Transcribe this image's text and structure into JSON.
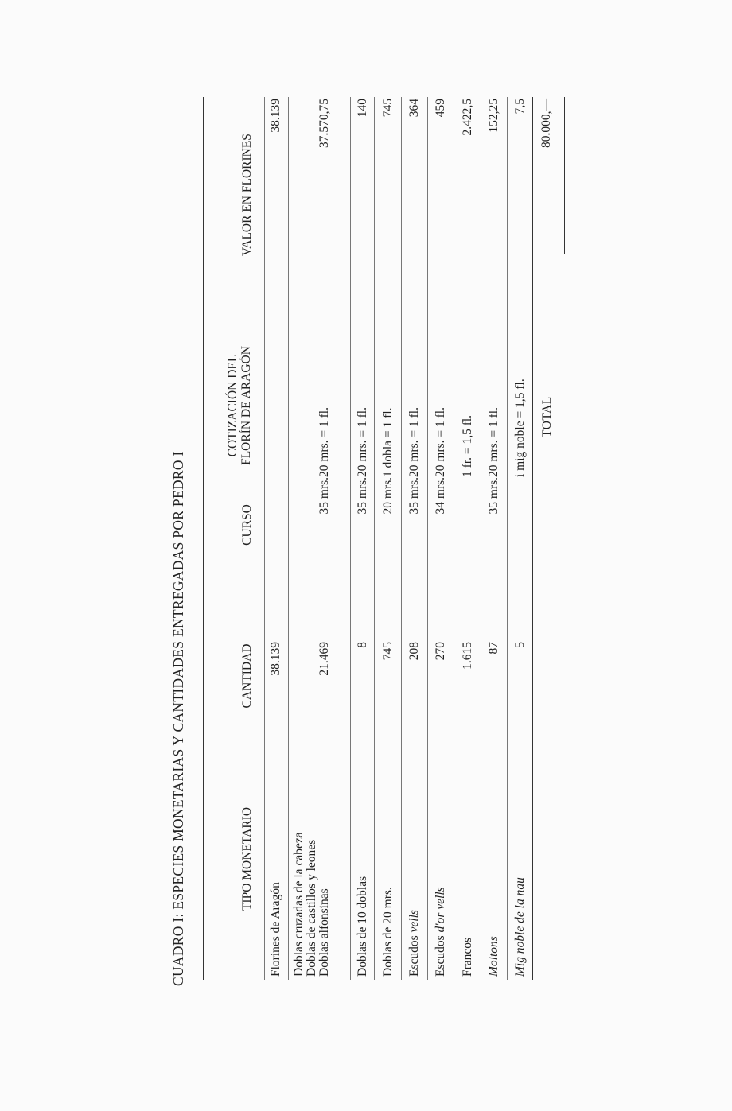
{
  "title": "CUADRO I: ESPECIES MONETARIAS Y CANTIDADES ENTREGADAS POR PEDRO I",
  "headers": {
    "tipo": "TIPO MONETARIO",
    "cantidad": "CANTIDAD",
    "curso": "CURSO",
    "cotizacion_1": "COTIZACIÓN DEL",
    "cotizacion_2": "FLORÍN DE ARAGÓN",
    "valor": "VALOR EN FLORINES"
  },
  "rows": [
    {
      "tipo": "Florines de Aragón",
      "cantidad": "38.139",
      "curso": "",
      "cotizacion": "",
      "valor": "38.139"
    },
    {
      "tipo_lines": [
        "Doblas cruzadas de la cabeza",
        "Doblas de castillos y leones",
        "Doblas alfonsinas"
      ],
      "cantidad": "21.469",
      "curso": "35 mrs.",
      "cotizacion": "20 mrs. = 1 fl.",
      "valor": "37.570,75"
    },
    {
      "tipo": "Doblas de 10 doblas",
      "cantidad": "8",
      "curso": "35 mrs.",
      "cotizacion": "20 mrs. = 1 fl.",
      "valor": "140"
    },
    {
      "tipo": "Doblas de 20 mrs.",
      "cantidad": "745",
      "curso": "20 mrs.",
      "cotizacion": "1 dobla = 1 fl.",
      "valor": "745"
    },
    {
      "tipo_plain": "Escudos ",
      "tipo_italic": "vells",
      "cantidad": "208",
      "curso": "35 mrs.",
      "cotizacion": "20 mrs. = 1 fl.",
      "valor": "364"
    },
    {
      "tipo_plain": "Escudos ",
      "tipo_italic": "d'or vells",
      "cantidad": "270",
      "curso": "34 mrs.",
      "cotizacion": "20 mrs. = 1 fl.",
      "valor": "459"
    },
    {
      "tipo": "Francos",
      "cantidad": "1.615",
      "curso": "",
      "cotizacion": "1 fr. = 1,5 fl.",
      "valor": "2.422,5"
    },
    {
      "tipo_italic": "Moltons",
      "cantidad": "87",
      "curso": "35 mrs.",
      "cotizacion": "20 mrs. = 1 fl.",
      "valor": "152,25"
    },
    {
      "tipo_italic": "Mig noble de la nau",
      "cantidad": "5",
      "curso": "",
      "cotizacion": "i mig noble = 1,5 fl.",
      "valor": "7,5"
    }
  ],
  "total": {
    "label": "TOTAL",
    "valor": "80.000,—"
  }
}
